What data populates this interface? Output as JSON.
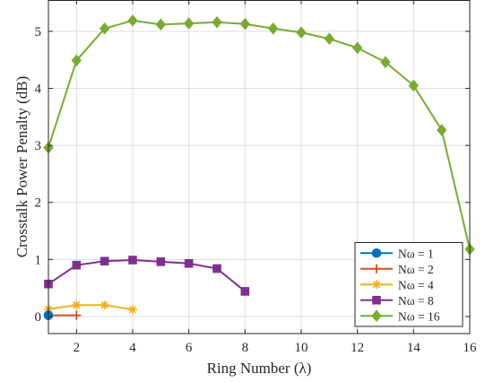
{
  "chart_data": {
    "type": "line",
    "xlabel": "Ring Number (λ)",
    "ylabel": "Crosstalk Power Penalty (dB)",
    "xlim": [
      1,
      16
    ],
    "ylim": [
      -0.3,
      5.55
    ],
    "xticks": [
      2,
      4,
      6,
      8,
      10,
      12,
      14,
      16
    ],
    "yticks": [
      0,
      1,
      2,
      3,
      4,
      5
    ],
    "grid": true,
    "legend_position": "bottom-right",
    "series": [
      {
        "name": "Nω = 1",
        "marker": "circle",
        "color": "#0072BD",
        "x": [
          1
        ],
        "y": [
          0.02
        ]
      },
      {
        "name": "Nω = 2",
        "marker": "plus",
        "color": "#D95319",
        "x": [
          1,
          2
        ],
        "y": [
          0.02,
          0.02
        ]
      },
      {
        "name": "Nω = 4",
        "marker": "star",
        "color": "#EDB120",
        "x": [
          1,
          2,
          3,
          4
        ],
        "y": [
          0.13,
          0.2,
          0.2,
          0.12
        ]
      },
      {
        "name": "Nω = 8",
        "marker": "square",
        "color": "#7E2F8E",
        "x": [
          1,
          2,
          3,
          4,
          5,
          6,
          7,
          8
        ],
        "y": [
          0.57,
          0.9,
          0.97,
          0.99,
          0.96,
          0.93,
          0.84,
          0.44
        ]
      },
      {
        "name": "Nω = 16",
        "marker": "diamond",
        "color": "#77AC30",
        "x": [
          1,
          2,
          3,
          4,
          5,
          6,
          7,
          8,
          9,
          10,
          11,
          12,
          13,
          14,
          15,
          16
        ],
        "y": [
          2.96,
          4.49,
          5.05,
          5.19,
          5.12,
          5.14,
          5.16,
          5.13,
          5.05,
          4.98,
          4.87,
          4.71,
          4.46,
          4.05,
          3.27,
          1.18
        ]
      }
    ]
  }
}
